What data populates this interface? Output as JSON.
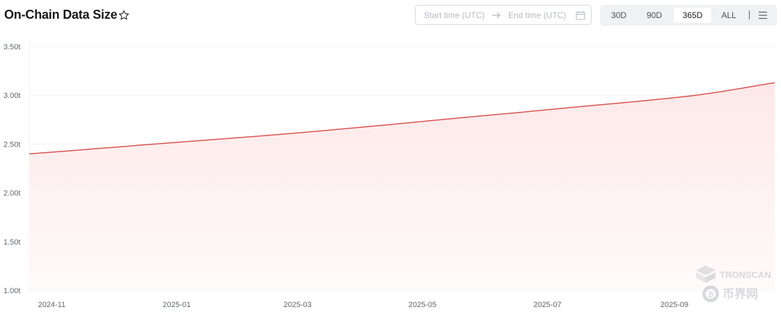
{
  "header": {
    "title": "On-Chain Data Size",
    "star_icon": "star-outline-icon"
  },
  "date_range": {
    "start_placeholder": "Start time (UTC)",
    "end_placeholder": "End time (UTC)",
    "arrow_icon": "arrow-right-icon",
    "calendar_icon": "calendar-icon"
  },
  "range_buttons": [
    {
      "label": "30D",
      "active": false
    },
    {
      "label": "90D",
      "active": false
    },
    {
      "label": "365D",
      "active": true
    },
    {
      "label": "ALL",
      "active": false
    }
  ],
  "menu_icon": "hamburger-menu-icon",
  "watermarks": [
    "TRONSCAN",
    "币界网"
  ],
  "colors": {
    "line": "#d9534f",
    "area_top": "#fde8e8",
    "area_bottom": "#fffafa",
    "grid": "#f0f0f0",
    "active_tab_bg": "#ffffff",
    "tab_group_bg": "#f0f1f4"
  },
  "chart_data": {
    "type": "area",
    "title": "On-Chain Data Size",
    "xlabel": "",
    "ylabel": "",
    "y_unit": "t",
    "yticks": [
      "1.00t",
      "1.50t",
      "2.00t",
      "2.50t",
      "3.00t",
      "3.50t"
    ],
    "ylim": [
      1.0,
      3.5
    ],
    "xticks": [
      "2024-11",
      "2025-01",
      "2025-03",
      "2025-05",
      "2025-07",
      "2025-09"
    ],
    "x": [
      "2024-10-21",
      "2024-11-15",
      "2024-12-15",
      "2025-01-15",
      "2025-02-15",
      "2025-03-15",
      "2025-04-15",
      "2025-05-15",
      "2025-06-15",
      "2025-07-15",
      "2025-08-15",
      "2025-09-15",
      "2025-10-20"
    ],
    "xlim": [
      "2024-10-21",
      "2025-10-20"
    ],
    "series": [
      {
        "values": [
          2.4,
          2.44,
          2.49,
          2.54,
          2.59,
          2.64,
          2.7,
          2.76,
          2.82,
          2.88,
          2.94,
          3.01,
          3.13
        ]
      }
    ],
    "grid": true
  }
}
